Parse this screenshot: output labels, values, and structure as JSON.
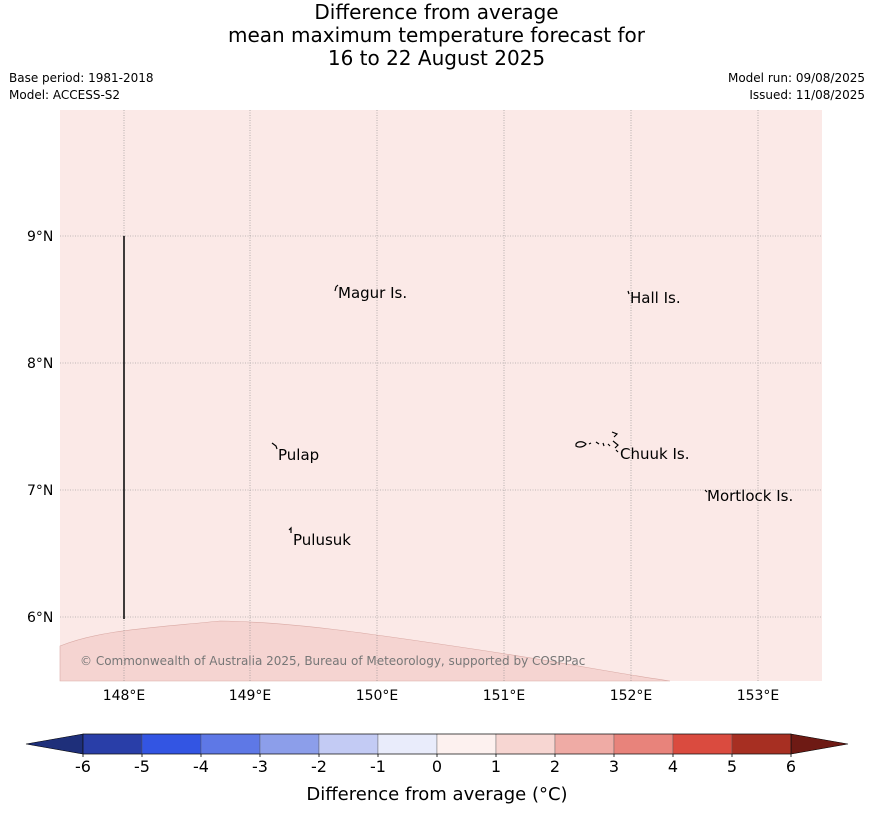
{
  "title_lines": [
    "Difference from average",
    "mean maximum temperature forecast for",
    "16 to 22 August 2025"
  ],
  "meta": {
    "base_period": "Base period: 1981-2018",
    "model": "Model: ACCESS-S2",
    "model_run": "Model run: 09/08/2025",
    "issued": "Issued: 11/08/2025"
  },
  "map": {
    "lat_labels": [
      "9°N",
      "8°N",
      "7°N",
      "6°N"
    ],
    "lon_labels": [
      "148°E",
      "149°E",
      "150°E",
      "151°E",
      "152°E",
      "153°E"
    ],
    "places": [
      "Magur Is.",
      "Hall Is.",
      "Pulap",
      "Chuuk Is.",
      "Mortlock Is.",
      "Pulusuk"
    ],
    "background_color": "#fbe9e7",
    "warm_region_color": "#f5d4d1",
    "credit": "© Commonwealth of Australia 2025, Bureau of Meteorology, supported by COSPPac"
  },
  "colorbar": {
    "ticks": [
      "-6",
      "-5",
      "-4",
      "-3",
      "-2",
      "-1",
      "0",
      "1",
      "2",
      "3",
      "4",
      "5",
      "6"
    ],
    "colors": [
      "#293ea8",
      "#3355e3",
      "#5e78e6",
      "#8c9eea",
      "#c3cbf4",
      "#e9ecfb",
      "#fdf1ef",
      "#f7d6d2",
      "#efaba5",
      "#e8837b",
      "#da4b3f",
      "#a72f22"
    ],
    "under_color": "#1e2f7a",
    "over_color": "#6e1a14",
    "label": "Difference from average (°C)"
  }
}
